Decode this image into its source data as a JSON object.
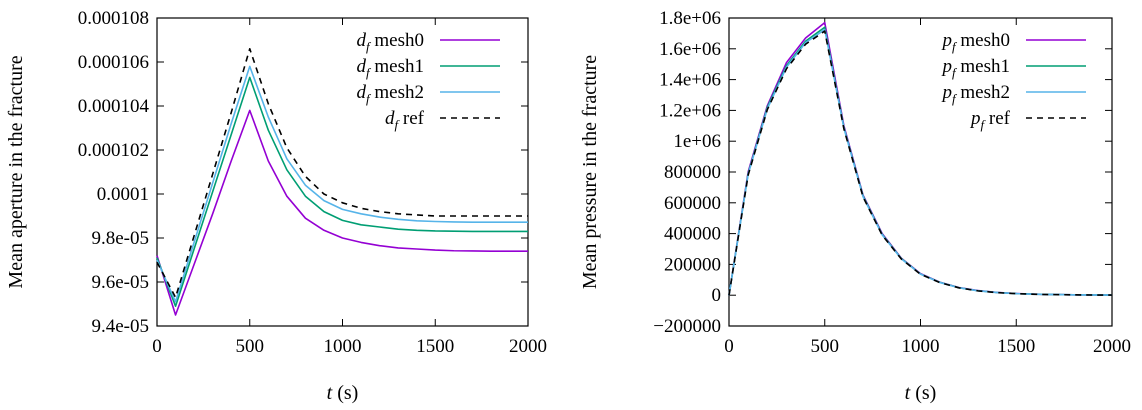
{
  "chart_data": [
    {
      "type": "line",
      "ylabel": "Mean aperture in the fracture",
      "xlabel": "t (s)",
      "xlim": [
        0,
        2000
      ],
      "ylim": [
        9.4e-05,
        0.000108
      ],
      "x_ticks": [
        0,
        500,
        1000,
        1500,
        2000
      ],
      "x_tick_labels": [
        "0",
        "500",
        "1000",
        "1500",
        "2000"
      ],
      "y_ticks": [
        9.4e-05,
        9.6e-05,
        9.8e-05,
        0.0001,
        0.000102,
        0.000104,
        0.000106,
        0.000108
      ],
      "y_tick_labels": [
        "9.4e-05",
        "9.6e-05",
        "9.8e-05",
        "0.0001",
        "0.000102",
        "0.000104",
        "0.000106",
        "0.000108"
      ],
      "legend_position": "top-right",
      "series": [
        {
          "name": "d_f mesh0",
          "symbol": "d",
          "subscript": "f",
          "label": "mesh0",
          "color": "#9400d3",
          "dash": "",
          "x": [
            0,
            100,
            200,
            300,
            400,
            500,
            600,
            700,
            800,
            900,
            1000,
            1100,
            1200,
            1300,
            1400,
            1500,
            1600,
            1700,
            1800,
            1900,
            2000
          ],
          "y": [
            9.72e-05,
            9.45e-05,
            9.68e-05,
            9.91e-05,
            0.0001015,
            0.0001038,
            0.0001015,
            9.99e-05,
            9.89e-05,
            9.835e-05,
            9.8e-05,
            9.78e-05,
            9.765e-05,
            9.755e-05,
            9.75e-05,
            9.745e-05,
            9.742e-05,
            9.741e-05,
            9.74e-05,
            9.74e-05,
            9.74e-05
          ]
        },
        {
          "name": "d_f mesh1",
          "symbol": "d",
          "subscript": "f",
          "label": "mesh1",
          "color": "#009e73",
          "dash": "",
          "x": [
            0,
            100,
            200,
            300,
            400,
            500,
            600,
            700,
            800,
            900,
            1000,
            1100,
            1200,
            1300,
            1400,
            1500,
            1600,
            1700,
            1800,
            1900,
            2000
          ],
          "y": [
            9.71e-05,
            9.49e-05,
            9.75e-05,
            0.0001001,
            0.0001027,
            0.0001053,
            0.0001029,
            0.0001011,
            9.99e-05,
            9.92e-05,
            9.88e-05,
            9.86e-05,
            9.85e-05,
            9.84e-05,
            9.835e-05,
            9.832e-05,
            9.831e-05,
            9.83e-05,
            9.83e-05,
            9.83e-05,
            9.83e-05
          ]
        },
        {
          "name": "d_f mesh2",
          "symbol": "d",
          "subscript": "f",
          "label": "mesh2",
          "color": "#56b4e9",
          "dash": "",
          "x": [
            0,
            100,
            200,
            300,
            400,
            500,
            600,
            700,
            800,
            900,
            1000,
            1100,
            1200,
            1300,
            1400,
            1500,
            1600,
            1700,
            1800,
            1900,
            2000
          ],
          "y": [
            9.7e-05,
            9.51e-05,
            9.78e-05,
            0.0001005,
            0.0001032,
            0.0001058,
            0.0001035,
            0.0001016,
            0.0001004,
            9.97e-05,
            9.93e-05,
            9.91e-05,
            9.895e-05,
            9.885e-05,
            9.878e-05,
            9.875e-05,
            9.873e-05,
            9.872e-05,
            9.872e-05,
            9.872e-05,
            9.872e-05
          ]
        },
        {
          "name": "d_f ref",
          "symbol": "d",
          "subscript": "f",
          "label": "ref",
          "color": "#000000",
          "dash": "6,5",
          "x": [
            0,
            100,
            200,
            300,
            400,
            500,
            600,
            700,
            800,
            900,
            1000,
            1100,
            1200,
            1300,
            1400,
            1500,
            1600,
            1700,
            1800,
            1900,
            2000
          ],
          "y": [
            9.69e-05,
            9.53e-05,
            9.81e-05,
            0.0001009,
            0.0001037,
            0.0001066,
            0.0001041,
            0.0001021,
            0.0001008,
            0.0001,
            9.96e-05,
            9.935e-05,
            9.92e-05,
            9.91e-05,
            9.905e-05,
            9.9e-05,
            9.9e-05,
            9.9e-05,
            9.9e-05,
            9.9e-05,
            9.9e-05
          ]
        }
      ]
    },
    {
      "type": "line",
      "ylabel": "Mean pressure in the fracture",
      "xlabel": "t (s)",
      "xlim": [
        0,
        2000
      ],
      "ylim": [
        -200000,
        1800000
      ],
      "x_ticks": [
        0,
        500,
        1000,
        1500,
        2000
      ],
      "x_tick_labels": [
        "0",
        "500",
        "1000",
        "1500",
        "2000"
      ],
      "y_ticks": [
        -200000,
        0,
        200000,
        400000,
        600000,
        800000,
        1000000,
        1200000,
        1400000,
        1600000,
        1800000
      ],
      "y_tick_labels": [
        "−200000",
        "0",
        "200000",
        "400000",
        "600000",
        "800000",
        "1e+06",
        "1.2e+06",
        "1.4e+06",
        "1.6e+06",
        "1.8e+06"
      ],
      "legend_position": "top-right",
      "series": [
        {
          "name": "p_f mesh0",
          "symbol": "p",
          "subscript": "f",
          "label": "mesh0",
          "color": "#9400d3",
          "dash": "",
          "x": [
            0,
            100,
            200,
            300,
            400,
            500,
            600,
            700,
            800,
            900,
            1000,
            1100,
            1200,
            1300,
            1400,
            1500,
            1600,
            1700,
            1800,
            1900,
            2000
          ],
          "y": [
            0,
            800000,
            1230000,
            1510000,
            1670000,
            1770000,
            1100000,
            650000,
            400000,
            240000,
            140000,
            85000,
            50000,
            30000,
            18000,
            11000,
            6500,
            4000,
            2500,
            1500,
            1000
          ]
        },
        {
          "name": "p_f mesh1",
          "symbol": "p",
          "subscript": "f",
          "label": "mesh1",
          "color": "#009e73",
          "dash": "",
          "x": [
            0,
            100,
            200,
            300,
            400,
            500,
            600,
            700,
            800,
            900,
            1000,
            1100,
            1200,
            1300,
            1400,
            1500,
            1600,
            1700,
            1800,
            1900,
            2000
          ],
          "y": [
            0,
            790000,
            1220000,
            1490000,
            1650000,
            1740000,
            1090000,
            645000,
            395000,
            238000,
            138000,
            84000,
            49000,
            29000,
            17500,
            10500,
            6300,
            3900,
            2400,
            1400,
            900
          ]
        },
        {
          "name": "p_f mesh2",
          "symbol": "p",
          "subscript": "f",
          "label": "mesh2",
          "color": "#56b4e9",
          "dash": "",
          "x": [
            0,
            100,
            200,
            300,
            400,
            500,
            600,
            700,
            800,
            900,
            1000,
            1100,
            1200,
            1300,
            1400,
            1500,
            1600,
            1700,
            1800,
            1900,
            2000
          ],
          "y": [
            0,
            785000,
            1210000,
            1480000,
            1640000,
            1725000,
            1085000,
            640000,
            392000,
            236000,
            137000,
            83000,
            48500,
            28500,
            17000,
            10200,
            6100,
            3800,
            2300,
            1400,
            900
          ]
        },
        {
          "name": "p_f ref",
          "symbol": "p",
          "subscript": "f",
          "label": "ref",
          "color": "#000000",
          "dash": "6,5",
          "x": [
            0,
            100,
            200,
            300,
            400,
            500,
            600,
            700,
            800,
            900,
            1000,
            1100,
            1200,
            1300,
            1400,
            1500,
            1600,
            1700,
            1800,
            1900,
            2000
          ],
          "y": [
            0,
            780000,
            1205000,
            1470000,
            1630000,
            1715000,
            1080000,
            638000,
            390000,
            235000,
            136000,
            82500,
            48000,
            28000,
            16800,
            10000,
            6000,
            3700,
            2300,
            1300,
            800
          ]
        }
      ]
    }
  ]
}
